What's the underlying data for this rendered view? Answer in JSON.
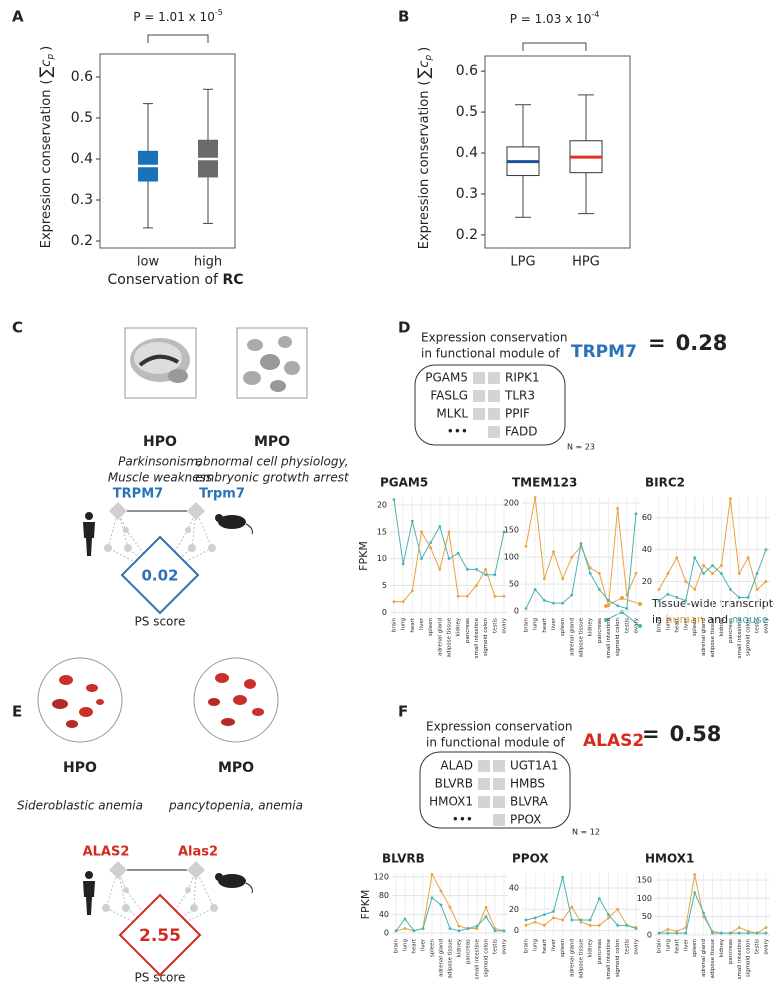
{
  "panel_labels": [
    "A",
    "B",
    "C",
    "D",
    "E",
    "F"
  ],
  "chart_data": [
    {
      "type": "box",
      "p_value": "P = 1.01 x 10",
      "p_exponent": "-5",
      "ylabel": "Expression conservation",
      "ylabel_math": [
        "(",
        "∑",
        "c",
        "p",
        ")"
      ],
      "xlabel": "Conservation of ",
      "xlabel_bold": "RC",
      "categories": [
        "low",
        "high"
      ],
      "boxes": [
        {
          "whislo": 0.232,
          "q1": 0.345,
          "med": 0.383,
          "q3": 0.42,
          "whishi": 0.535,
          "color": "#1a72bb",
          "median_color": "#ffffff"
        },
        {
          "whislo": 0.243,
          "q1": 0.355,
          "med": 0.4,
          "q3": 0.447,
          "whishi": 0.57,
          "color": "#6b6b6b",
          "median_color": "#ffffff"
        }
      ],
      "ylim": [
        0.183,
        0.656
      ],
      "yticks": [
        0.2,
        0.3,
        0.4,
        0.5,
        0.6
      ]
    },
    {
      "type": "box",
      "p_value": "P = 1.03 x 10",
      "p_exponent": "-4",
      "ylabel": "Expression conservation",
      "ylabel_math": [
        "(",
        "∑",
        "c",
        "p",
        ")"
      ],
      "categories": [
        "LPG",
        "HPG"
      ],
      "boxes": [
        {
          "whislo": 0.243,
          "q1": 0.345,
          "med": 0.379,
          "q3": 0.415,
          "whishi": 0.518,
          "color": "#ffffff",
          "median_color": "#1f4e9c"
        },
        {
          "whislo": 0.252,
          "q1": 0.352,
          "med": 0.39,
          "q3": 0.43,
          "whishi": 0.542,
          "color": "#ffffff",
          "median_color": "#e0302a"
        }
      ],
      "ylim": [
        0.168,
        0.637
      ],
      "yticks": [
        0.2,
        0.3,
        0.4,
        0.5,
        0.6
      ]
    },
    {
      "type": "line",
      "title": "PGAM5",
      "ylabel": "FPKM",
      "categories": [
        "brain",
        "lung",
        "heart",
        "liver",
        "spleen",
        "adrenal gland",
        "adipose tissue",
        "kidney",
        "pancreas",
        "small intestine",
        "sigmoid colon",
        "testis",
        "ovary"
      ],
      "series": [
        {
          "color": "#e8a33d",
          "values": [
            2,
            2,
            4,
            15,
            12,
            8,
            15,
            3,
            3,
            5,
            8,
            3,
            3
          ]
        },
        {
          "color": "#4bb3b3",
          "values": [
            21,
            9,
            17,
            10,
            13,
            16,
            10,
            11,
            8,
            8,
            7,
            7,
            15
          ]
        }
      ],
      "ylim": [
        -0.5,
        21.5
      ],
      "yticks": [
        0,
        5,
        10,
        15,
        20
      ],
      "grid": true
    },
    {
      "type": "line",
      "title": "TMEM123",
      "categories": [
        "brain",
        "lung",
        "heart",
        "liver",
        "spleen",
        "adrenal gland",
        "adipose tissue",
        "kidney",
        "pancreas",
        "small intestine",
        "sigmoid colon",
        "testis",
        "ovary"
      ],
      "series": [
        {
          "color": "#e8a33d",
          "values": [
            120,
            210,
            60,
            110,
            60,
            100,
            120,
            80,
            70,
            10,
            190,
            30,
            70
          ]
        },
        {
          "color": "#4bb3b3",
          "values": [
            5,
            40,
            20,
            15,
            15,
            30,
            125,
            70,
            40,
            20,
            10,
            5,
            180
          ]
        }
      ],
      "ylim": [
        -7,
        211
      ],
      "yticks": [
        0,
        50,
        100,
        150,
        200
      ],
      "grid": true
    },
    {
      "type": "line",
      "title": "BIRC2",
      "categories": [
        "brain",
        "lung",
        "heart",
        "liver",
        "spleen",
        "adrenal gland",
        "adipose tissue",
        "kidney",
        "pancreas",
        "small intestine",
        "sigmoid colon",
        "testis",
        "ovary"
      ],
      "series": [
        {
          "color": "#e8a33d",
          "values": [
            15,
            25,
            35,
            20,
            15,
            30,
            25,
            30,
            72,
            25,
            35,
            15,
            20
          ]
        },
        {
          "color": "#4bb3b3",
          "values": [
            8,
            12,
            10,
            8,
            35,
            25,
            30,
            25,
            15,
            10,
            10,
            25,
            40
          ]
        }
      ],
      "ylim": [
        -1,
        73
      ],
      "yticks": [
        20,
        40,
        60
      ],
      "grid": true
    },
    {
      "type": "line",
      "title": "BLVRB",
      "ylabel": "FPKM",
      "categories": [
        "brain",
        "lung",
        "heart",
        "liver",
        "spleen",
        "adrenal gland",
        "adipose tissue",
        "kidney",
        "pancreas",
        "small intestine",
        "sigmoid colon",
        "testis",
        "ovary"
      ],
      "series": [
        {
          "color": "#e8a33d",
          "values": [
            5,
            10,
            5,
            10,
            125,
            90,
            55,
            15,
            10,
            10,
            55,
            10,
            5
          ]
        },
        {
          "color": "#4bb3b3",
          "values": [
            5,
            30,
            5,
            10,
            75,
            60,
            10,
            5,
            10,
            15,
            35,
            5,
            5
          ]
        }
      ],
      "ylim": [
        -6,
        128
      ],
      "yticks": [
        0,
        40,
        80,
        120
      ],
      "grid": true
    },
    {
      "type": "line",
      "title": "PPOX",
      "categories": [
        "brain",
        "lung",
        "heart",
        "liver",
        "spleen",
        "adrenal gland",
        "adipose tissue",
        "kidney",
        "pancreas",
        "small intestine",
        "sigmoid colon",
        "testis",
        "ovary"
      ],
      "series": [
        {
          "color": "#e8a33d",
          "values": [
            5,
            8,
            5,
            12,
            10,
            22,
            8,
            5,
            5,
            12,
            20,
            5,
            3
          ]
        },
        {
          "color": "#4bb3b3",
          "values": [
            10,
            12,
            15,
            18,
            50,
            10,
            10,
            10,
            30,
            15,
            5,
            5,
            2
          ]
        }
      ],
      "ylim": [
        -5,
        54
      ],
      "yticks": [
        0,
        20,
        40
      ],
      "grid": true
    },
    {
      "type": "line",
      "title": "HMOX1",
      "categories": [
        "brain",
        "lung",
        "heart",
        "liver",
        "spleen",
        "adrenal gland",
        "adipose tissue",
        "kidney",
        "pancreas",
        "small intestine",
        "sigmoid colon",
        "testis",
        "ovary"
      ],
      "series": [
        {
          "color": "#e8a33d",
          "values": [
            5,
            15,
            10,
            20,
            165,
            50,
            10,
            5,
            5,
            20,
            10,
            5,
            20
          ]
        },
        {
          "color": "#4bb3b3",
          "values": [
            5,
            5,
            5,
            5,
            115,
            60,
            5,
            5,
            5,
            5,
            5,
            5,
            5
          ]
        }
      ],
      "ylim": [
        -3,
        169
      ],
      "yticks": [
        0,
        50,
        100,
        150
      ],
      "grid": true
    }
  ],
  "panel_c": {
    "left": {
      "ontology": "HPO",
      "phenotypes": [
        "Parkinsonism,",
        "Muscle weakness"
      ],
      "gene": "TRPM7"
    },
    "right": {
      "ontology": "MPO",
      "phenotypes": [
        "abnormal cell physiology,",
        "embryonic grotwth arrest"
      ],
      "gene": "Trpm7"
    },
    "ps_score": 0.02,
    "ps_label": "PS score"
  },
  "panel_d": {
    "title_lines": [
      "Expression conservation",
      "in functional module of"
    ],
    "gene": "TRPM7",
    "equals": "=",
    "score": 0.28,
    "genes_left": [
      "PGAM5",
      "FASLG",
      "MLKL",
      "•••"
    ],
    "genes_right": [
      "RIPK1",
      "TLR3",
      "PPIF",
      "FADD"
    ],
    "n": "N = 23",
    "legend": [
      "Tissue-wide transcriptome",
      "in ",
      "human",
      " and ",
      "mouse"
    ]
  },
  "panel_e": {
    "left": {
      "ontology": "HPO",
      "phenotypes": [
        "Sideroblastic anemia"
      ],
      "gene": "ALAS2"
    },
    "right": {
      "ontology": "MPO",
      "phenotypes": [
        "pancytopenia, anemia"
      ],
      "gene": "Alas2"
    },
    "ps_score": 2.55,
    "ps_label": "PS score"
  },
  "panel_f": {
    "title_lines": [
      "Expression conservation",
      "in functional module of"
    ],
    "gene": "ALAS2",
    "equals": "=",
    "score": 0.58,
    "genes_left": [
      "ALAD",
      "BLVRB",
      "HMOX1",
      "•••"
    ],
    "genes_right": [
      "UGT1A1",
      "HMBS",
      "BLVRA",
      "PPOX"
    ],
    "n": "N = 12"
  }
}
